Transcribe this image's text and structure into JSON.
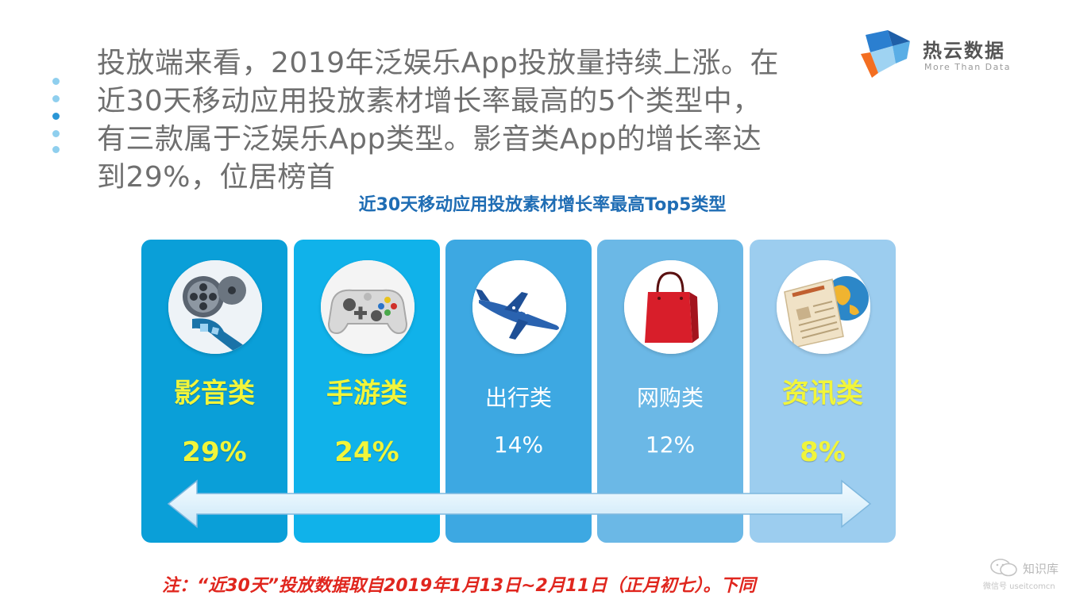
{
  "headline": "投放端来看，2019年泛娱乐App投放量持续上涨。在\n近30天移动应用投放素材增长率最高的5个类型中，\n有三款属于泛娱乐App类型。影音类App的增长率达\n到29%，位居榜首",
  "logo": {
    "name": "热云数据",
    "tagline": "More Than Data",
    "colors": [
      "#2b7fd0",
      "#f36e21",
      "#9fd3f2"
    ]
  },
  "subtitle": "近30天移动应用投放素材增长率最高Top5类型",
  "categories": [
    {
      "label": "影音类",
      "percent": "29%",
      "icon": "film-reel-icon",
      "highlight": true,
      "color": "#0a9fd8"
    },
    {
      "label": "手游类",
      "percent": "24%",
      "icon": "gamepad-icon",
      "highlight": true,
      "color": "#10b2ea"
    },
    {
      "label": "出行类",
      "percent": "14%",
      "icon": "airplane-icon",
      "highlight": false,
      "color": "#3da8e2"
    },
    {
      "label": "网购类",
      "percent": "12%",
      "icon": "shopping-bag-icon",
      "highlight": false,
      "color": "#6bb8e6"
    },
    {
      "label": "资讯类",
      "percent": "8%",
      "icon": "news-globe-icon",
      "highlight": true,
      "color": "#9ccdef"
    }
  ],
  "note": "注：“近30天”投放数据取自2019年1月13日~2月11日（正月初七）。下同",
  "watermark": {
    "name": "知识库",
    "sub": "微信号 useitcomcn"
  }
}
